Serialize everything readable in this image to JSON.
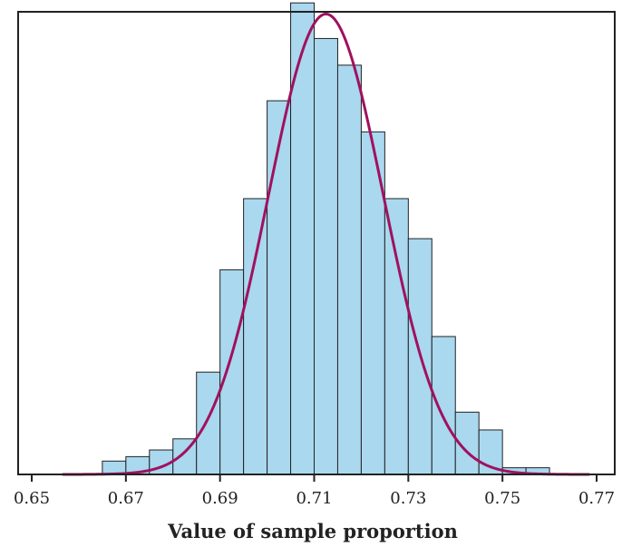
{
  "chart_data": {
    "type": "histogram",
    "title": "",
    "xlabel": "Value of sample proportion",
    "ylabel": "",
    "xlim": [
      0.65,
      0.77
    ],
    "ylim": [
      0,
      104
    ],
    "x_ticks": [
      0.65,
      0.67,
      0.69,
      0.71,
      0.73,
      0.75,
      0.77
    ],
    "x_tick_labels": [
      "0.65",
      "0.67",
      "0.69",
      "0.71",
      "0.73",
      "0.75",
      "0.77"
    ],
    "grid": false,
    "legend": "none",
    "bin_width": 0.005,
    "bins": [
      {
        "start": 0.665,
        "end": 0.67,
        "count": 3
      },
      {
        "start": 0.67,
        "end": 0.675,
        "count": 4
      },
      {
        "start": 0.675,
        "end": 0.68,
        "count": 5.5
      },
      {
        "start": 0.68,
        "end": 0.685,
        "count": 8
      },
      {
        "start": 0.685,
        "end": 0.69,
        "count": 23
      },
      {
        "start": 0.69,
        "end": 0.695,
        "count": 46
      },
      {
        "start": 0.695,
        "end": 0.7,
        "count": 62
      },
      {
        "start": 0.7,
        "end": 0.705,
        "count": 84
      },
      {
        "start": 0.705,
        "end": 0.71,
        "count": 106
      },
      {
        "start": 0.71,
        "end": 0.715,
        "count": 98
      },
      {
        "start": 0.715,
        "end": 0.72,
        "count": 92
      },
      {
        "start": 0.72,
        "end": 0.725,
        "count": 77
      },
      {
        "start": 0.725,
        "end": 0.73,
        "count": 62
      },
      {
        "start": 0.73,
        "end": 0.735,
        "count": 53
      },
      {
        "start": 0.735,
        "end": 0.74,
        "count": 31
      },
      {
        "start": 0.74,
        "end": 0.745,
        "count": 14
      },
      {
        "start": 0.745,
        "end": 0.75,
        "count": 10
      },
      {
        "start": 0.75,
        "end": 0.755,
        "count": 1.5
      },
      {
        "start": 0.755,
        "end": 0.76,
        "count": 1.5
      }
    ],
    "normal_curve": {
      "mean": 0.7125,
      "sd": 0.0122,
      "peak": 103.5,
      "x_start": 0.6565,
      "x_end": 0.7685
    },
    "colors": {
      "bar_fill": "#a9d8ef",
      "bar_stroke": "#222222",
      "curve": "#a0115e",
      "axis": "#222222"
    }
  }
}
